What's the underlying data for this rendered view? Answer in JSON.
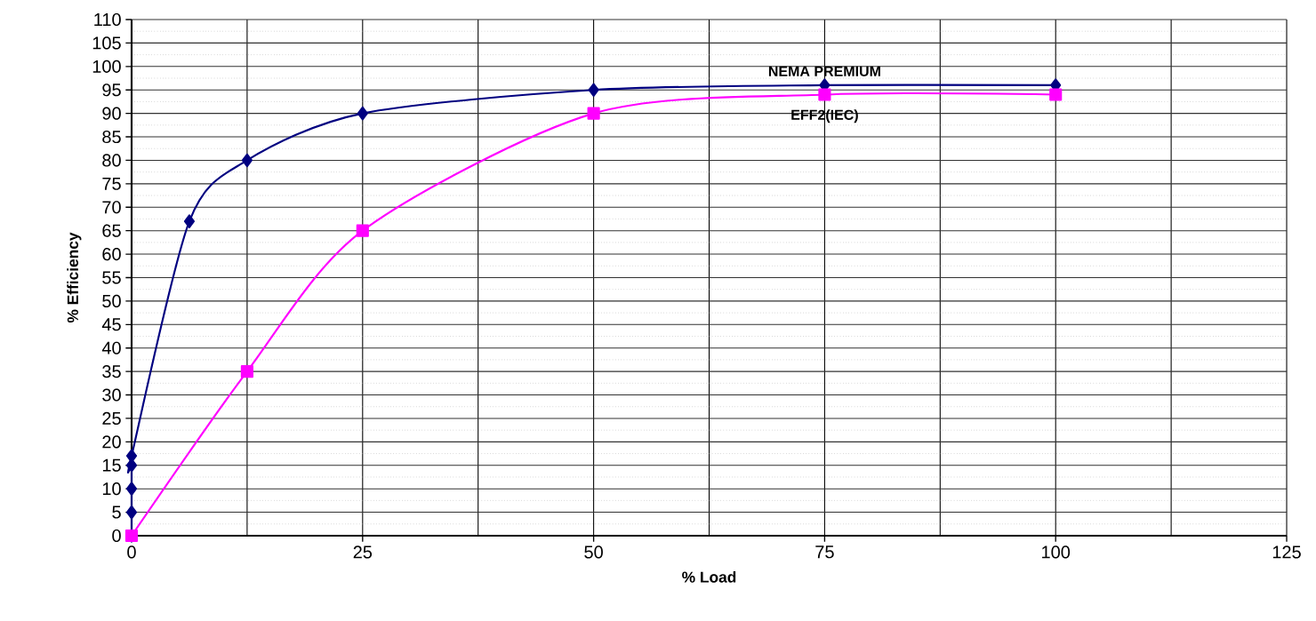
{
  "chart_data": {
    "type": "line",
    "xlabel": "% Load",
    "ylabel": "% Efficiency",
    "xlim": [
      0,
      125
    ],
    "xticks": [
      0,
      25,
      50,
      75,
      100,
      125
    ],
    "ylim": [
      0,
      110
    ],
    "yticks": [
      0,
      5,
      10,
      15,
      20,
      25,
      30,
      35,
      40,
      45,
      50,
      55,
      60,
      65,
      70,
      75,
      80,
      85,
      90,
      95,
      100,
      105,
      110
    ],
    "grid": true,
    "series": [
      {
        "name": "NEMA PREMIUM",
        "color": "#000080",
        "marker": "diamond",
        "x": [
          0,
          0,
          0,
          0,
          0,
          6.25,
          12.5,
          25,
          50,
          75,
          100
        ],
        "values": [
          0,
          5,
          10,
          15,
          17,
          67,
          80,
          90,
          95,
          96,
          96
        ]
      },
      {
        "name": "EFF2(IEC)",
        "color": "#ff00ff",
        "marker": "square",
        "x": [
          0,
          12.5,
          25,
          50,
          75,
          100
        ],
        "values": [
          0,
          35,
          65,
          90,
          94,
          94
        ]
      }
    ]
  }
}
